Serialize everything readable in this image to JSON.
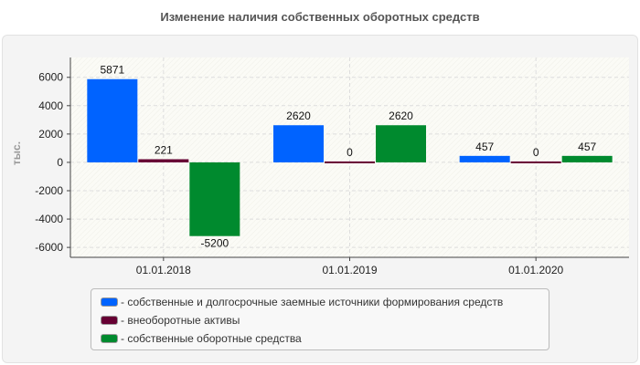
{
  "title": "Изменение наличия собственных оборотных средств",
  "chart_data": {
    "type": "bar",
    "title": "Изменение наличия собственных оборотных средств",
    "ylabel": "тыс.",
    "xlabel": "",
    "ylim": [
      -6700,
      7400
    ],
    "yticks": [
      6000,
      4000,
      2000,
      0,
      -2000,
      -4000,
      -6000
    ],
    "grid": true,
    "legend_position": "bottom",
    "categories": [
      "01.01.2018",
      "01.01.2019",
      "01.01.2020"
    ],
    "series": [
      {
        "name": "- собственные и долгосрочные заемные источники формирования средств",
        "color": "#0063ff",
        "values": [
          5871,
          2620,
          457
        ]
      },
      {
        "name": "- внеоборотные активы",
        "color": "#660033",
        "values": [
          221,
          0,
          0
        ]
      },
      {
        "name": "- собственные оборотные средства",
        "color": "#008a2e",
        "values": [
          -5200,
          2620,
          457
        ]
      }
    ]
  }
}
